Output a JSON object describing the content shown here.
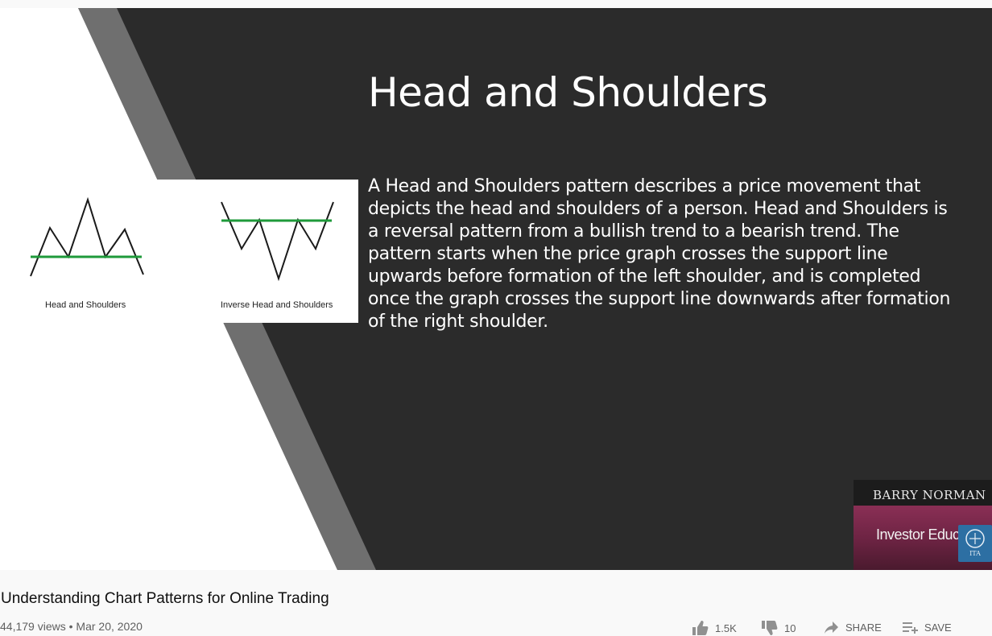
{
  "slide": {
    "title": "Head and Shoulders",
    "body": "A Head and Shoulders pattern describes a  price movement that depicts the head and shoulders of a person. Head and Shoulders is a reversal pattern from a bullish trend to a bearish trend. The pattern starts when the price graph crosses the support line upwards before formation of the left shoulder, and is completed once the graph crosses the support line downwards after formation of the right shoulder.",
    "diagram_labels": {
      "left": "Head and Shoulders",
      "right": "Inverse Head and Shoulders"
    },
    "colors": {
      "background": "#2b2b2b",
      "stripe": "#6f6f6f",
      "support_line": "#1e9a3a"
    }
  },
  "presenter_badge": {
    "name": "BARRY NORMAN",
    "subtitle": "Investor Educat",
    "logo_text": "ITA"
  },
  "video": {
    "title": "Understanding Chart Patterns for Online Trading",
    "views": "44,179 views",
    "date": "Mar 20, 2020"
  },
  "actions": {
    "likes": "1.5K",
    "dislikes": "10",
    "share": "SHARE",
    "save": "SAVE"
  }
}
